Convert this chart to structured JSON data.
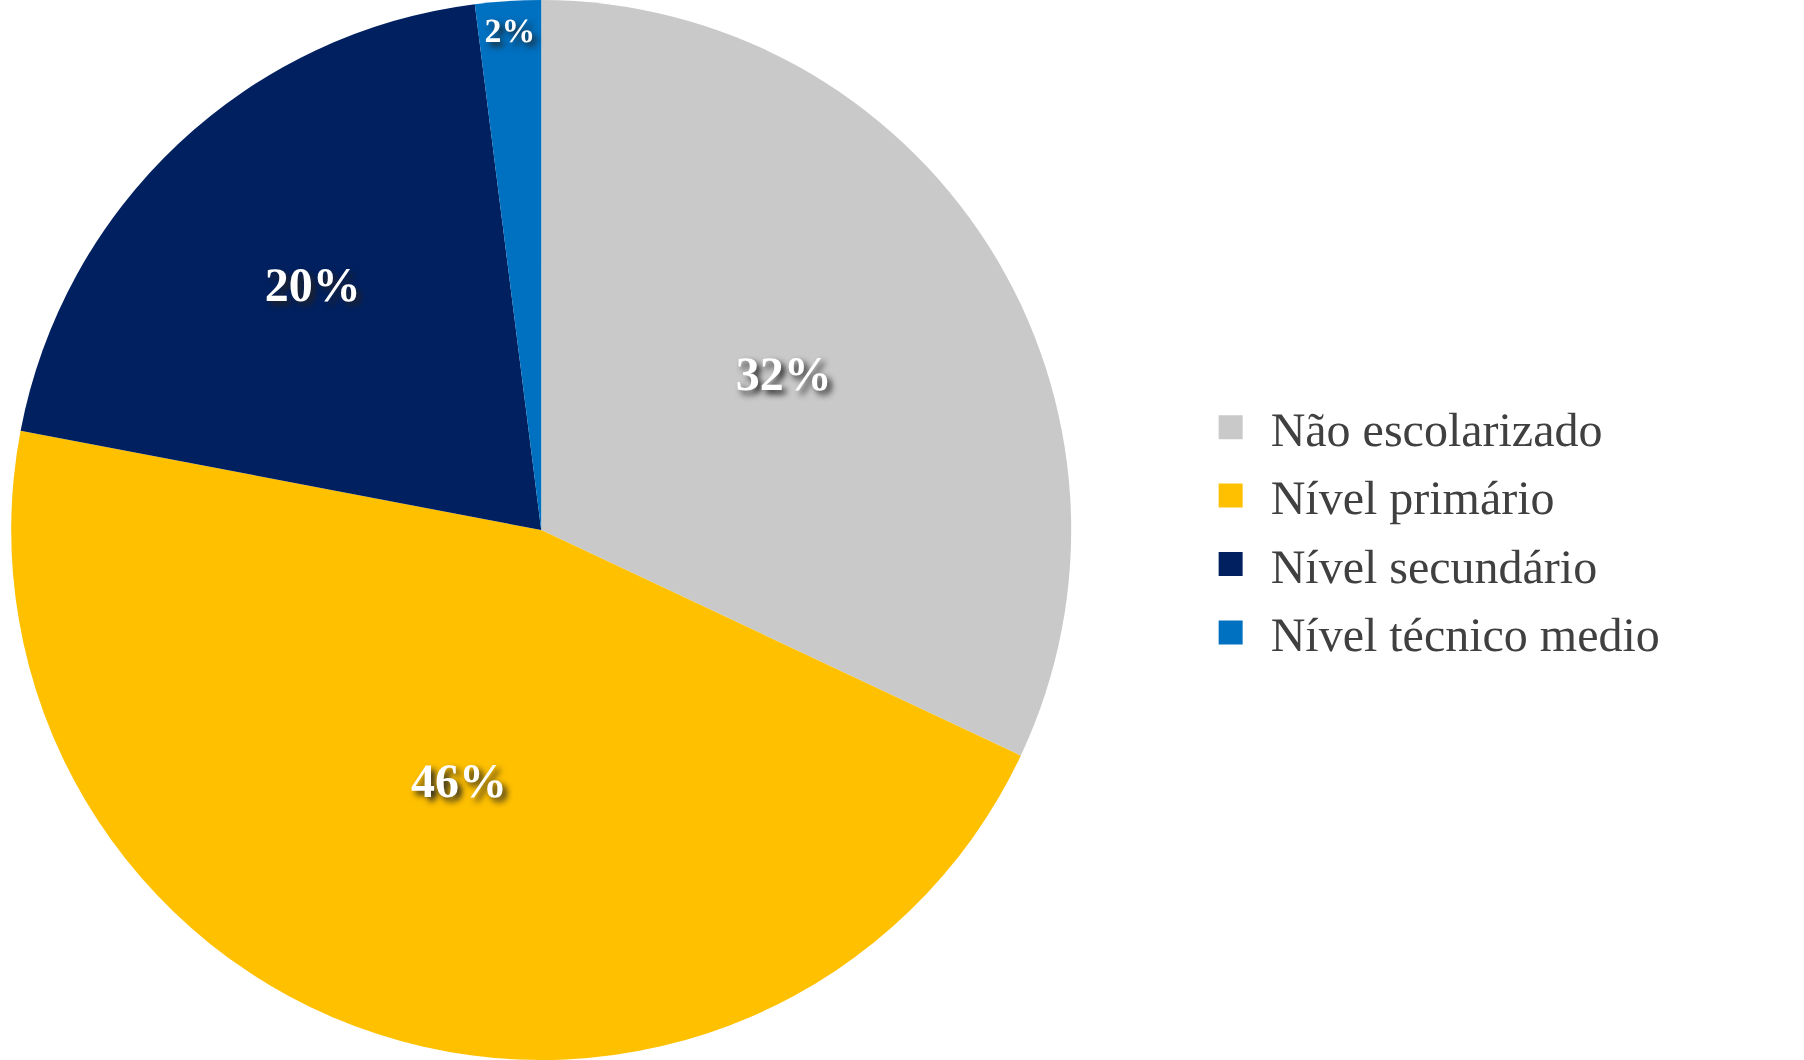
{
  "chart_data": {
    "type": "pie",
    "categories": [
      "Não escolarizado",
      "Nível primário",
      "Nível secundário",
      "Nível técnico medio"
    ],
    "values": [
      32,
      46,
      20,
      2
    ],
    "value_labels": [
      "32%",
      "46%",
      "20%",
      "2%"
    ],
    "colors": [
      "#c9c9c9",
      "#ffc000",
      "#002060",
      "#0070c0"
    ],
    "legend": "right"
  }
}
